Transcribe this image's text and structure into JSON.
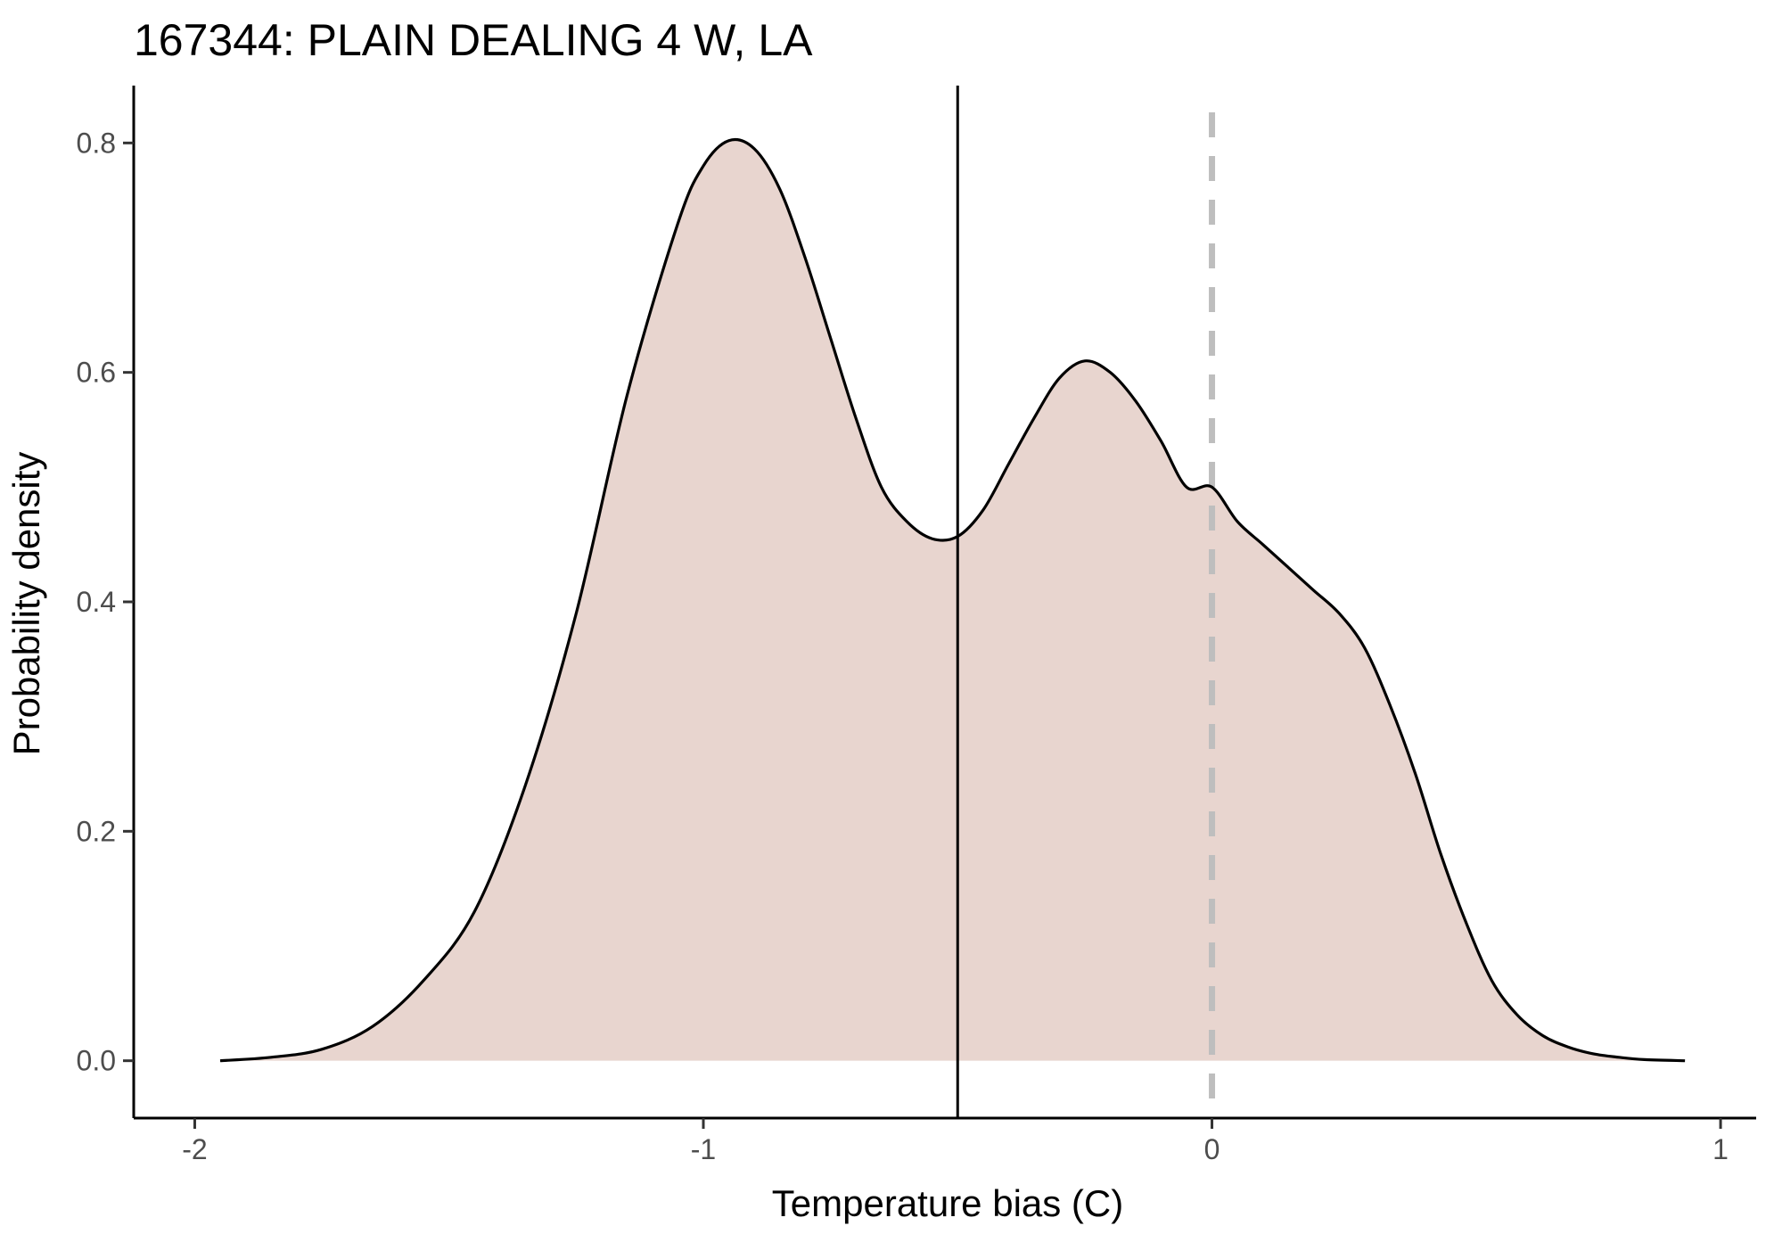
{
  "chart_data": {
    "type": "area",
    "title": "167344: PLAIN DEALING 4 W, LA",
    "xlabel": "Temperature bias (C)",
    "ylabel": "Probability density",
    "xlim": [
      -2.12,
      1.07
    ],
    "ylim": [
      -0.05,
      0.85
    ],
    "x_ticks": [
      -2,
      -1,
      0,
      1
    ],
    "x_tick_labels": [
      "-2",
      "-1",
      "0",
      "1"
    ],
    "y_ticks": [
      0.0,
      0.2,
      0.4,
      0.6,
      0.8
    ],
    "y_tick_labels": [
      "0.0",
      "0.2",
      "0.4",
      "0.6",
      "0.8"
    ],
    "grid": false,
    "fill_color": "#e8d5cf",
    "line_color": "#000000",
    "reference_lines": [
      {
        "x": -0.5,
        "style": "solid",
        "color": "#000000"
      },
      {
        "x": 0.0,
        "style": "dashed",
        "color": "#bebebe"
      }
    ],
    "density": {
      "x": [
        -1.95,
        -1.85,
        -1.75,
        -1.65,
        -1.55,
        -1.45,
        -1.35,
        -1.25,
        -1.15,
        -1.05,
        -1.0,
        -0.95,
        -0.9,
        -0.85,
        -0.8,
        -0.75,
        -0.7,
        -0.65,
        -0.6,
        -0.55,
        -0.5,
        -0.45,
        -0.4,
        -0.35,
        -0.3,
        -0.25,
        -0.2,
        -0.15,
        -0.1,
        -0.05,
        0.0,
        0.05,
        0.1,
        0.15,
        0.2,
        0.25,
        0.3,
        0.35,
        0.4,
        0.45,
        0.5,
        0.55,
        0.6,
        0.65,
        0.7,
        0.75,
        0.8,
        0.85,
        0.93
      ],
      "y": [
        0.0,
        0.003,
        0.01,
        0.03,
        0.07,
        0.13,
        0.24,
        0.39,
        0.58,
        0.73,
        0.78,
        0.802,
        0.795,
        0.76,
        0.7,
        0.63,
        0.56,
        0.5,
        0.47,
        0.455,
        0.457,
        0.48,
        0.52,
        0.56,
        0.595,
        0.61,
        0.6,
        0.575,
        0.54,
        0.5,
        0.5,
        0.47,
        0.45,
        0.43,
        0.41,
        0.39,
        0.36,
        0.31,
        0.25,
        0.18,
        0.12,
        0.07,
        0.04,
        0.022,
        0.012,
        0.006,
        0.003,
        0.001,
        0.0
      ]
    }
  }
}
